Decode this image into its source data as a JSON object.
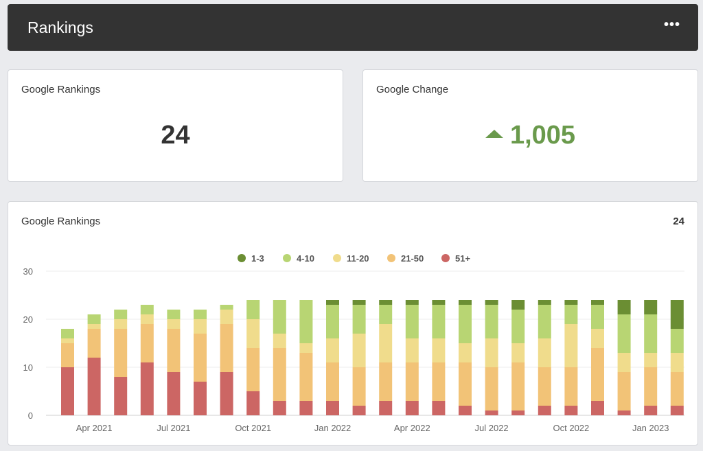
{
  "header": {
    "title": "Rankings",
    "more_label": "•••"
  },
  "card_rankings": {
    "title": "Google Rankings",
    "value": "24"
  },
  "card_change": {
    "title": "Google Change",
    "value": "1,005"
  },
  "chart_card": {
    "title": "Google Rankings",
    "total": "24"
  },
  "colors": {
    "1-3": "#6b8e33",
    "4-10": "#b8d573",
    "11-20": "#f0dc8c",
    "21-50": "#f2c377",
    "51+": "#cc6664",
    "positive": "#6a9a4c"
  },
  "chart_data": {
    "type": "bar",
    "stacked": true,
    "ylim": [
      0,
      30
    ],
    "yticks": [
      0,
      10,
      20,
      30
    ],
    "grid": true,
    "legend_position": "top-center",
    "x_tick_labels": [
      "Apr 2021",
      "Jul 2021",
      "Oct 2021",
      "Jan 2022",
      "Apr 2022",
      "Jul 2022",
      "Oct 2022",
      "Jan 2023"
    ],
    "x_tick_bar_index": [
      1,
      4,
      7,
      10,
      13,
      16,
      19,
      22
    ],
    "series": [
      {
        "name": "51+",
        "values": [
          10,
          12,
          8,
          11,
          9,
          7,
          9,
          5,
          3,
          3,
          3,
          2,
          3,
          3,
          3,
          2,
          1,
          1,
          2,
          2,
          3,
          1,
          2,
          2
        ]
      },
      {
        "name": "21-50",
        "values": [
          5,
          6,
          10,
          8,
          9,
          10,
          10,
          9,
          11,
          10,
          8,
          8,
          8,
          8,
          8,
          9,
          9,
          10,
          8,
          8,
          11,
          8,
          8,
          7
        ]
      },
      {
        "name": "11-20",
        "values": [
          1,
          1,
          2,
          2,
          2,
          3,
          3,
          6,
          3,
          2,
          5,
          7,
          8,
          5,
          5,
          4,
          6,
          4,
          6,
          9,
          4,
          4,
          3,
          4
        ]
      },
      {
        "name": "4-10",
        "values": [
          2,
          2,
          2,
          2,
          2,
          2,
          1,
          4,
          7,
          9,
          7,
          6,
          4,
          7,
          7,
          8,
          7,
          7,
          7,
          4,
          5,
          8,
          8,
          5
        ]
      },
      {
        "name": "1-3",
        "values": [
          0,
          0,
          0,
          0,
          0,
          0,
          0,
          0,
          0,
          0,
          1,
          1,
          1,
          1,
          1,
          1,
          1,
          2,
          1,
          1,
          1,
          3,
          3,
          6
        ]
      }
    ]
  }
}
